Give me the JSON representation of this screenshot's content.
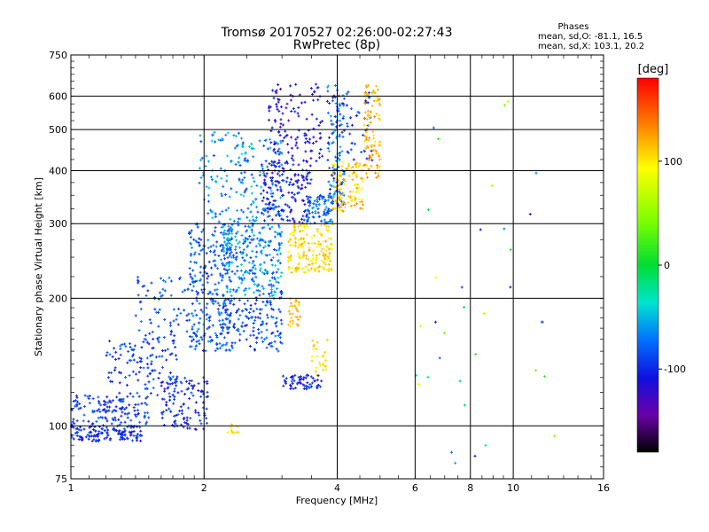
{
  "chart_data": {
    "type": "scatter",
    "title": "Tromsø 20170527 02:26:00-02:27:43",
    "subtitle": "RwPretec (8p)",
    "xlabel": "Frequency [MHz]",
    "ylabel": "Stationary phase Virtual Height [km]",
    "x_scale": "log",
    "y_scale": "log",
    "xlim": [
      1,
      16
    ],
    "ylim": [
      75,
      750
    ],
    "x_ticks": [
      1,
      2,
      4,
      6,
      8,
      10,
      16
    ],
    "x_tick_labels": [
      "1",
      "2",
      "4",
      "6",
      "8",
      "10",
      "16"
    ],
    "y_ticks": [
      75,
      100,
      200,
      300,
      400,
      500,
      600,
      750
    ],
    "y_tick_labels": [
      "75",
      "100",
      "200",
      "300",
      "400",
      "500",
      "600",
      "750"
    ],
    "grid": true,
    "stats": {
      "header": "Phases",
      "line_o": "mean, sd,O: -81.1, 16.5",
      "line_x": "mean, sd,X: 103.1, 20.2"
    },
    "colorbar": {
      "label": "[deg]",
      "range": [
        -180,
        180
      ],
      "ticks": [
        100,
        0,
        -100
      ],
      "tick_labels": [
        "100",
        "0",
        "-100"
      ],
      "colormap": "rainbow"
    },
    "clusters": [
      {
        "f": [
          1.0,
          1.45
        ],
        "h": [
          92,
          100
        ],
        "phase": [
          -130,
          -95
        ],
        "n": 130
      },
      {
        "f": [
          1.0,
          1.5
        ],
        "h": [
          100,
          118
        ],
        "phase": [
          -125,
          -90
        ],
        "n": 130
      },
      {
        "f": [
          1.2,
          1.75
        ],
        "h": [
          118,
          160
        ],
        "phase": [
          -120,
          -90
        ],
        "n": 120
      },
      {
        "f": [
          1.4,
          1.85
        ],
        "h": [
          160,
          225
        ],
        "phase": [
          -115,
          -85
        ],
        "n": 70
      },
      {
        "f": [
          1.6,
          2.05
        ],
        "h": [
          98,
          130
        ],
        "phase": [
          -130,
          -95
        ],
        "n": 110
      },
      {
        "f": [
          1.85,
          2.3
        ],
        "h": [
          150,
          300
        ],
        "phase": [
          -115,
          -80
        ],
        "n": 260
      },
      {
        "f": [
          1.95,
          2.5
        ],
        "h": [
          300,
          500
        ],
        "phase": [
          -105,
          -60
        ],
        "n": 90
      },
      {
        "f": [
          2.2,
          3.0
        ],
        "h": [
          200,
          300
        ],
        "phase": [
          -110,
          -60
        ],
        "n": 280
      },
      {
        "f": [
          2.2,
          3.0
        ],
        "h": [
          150,
          200
        ],
        "phase": [
          -120,
          -85
        ],
        "n": 150
      },
      {
        "f": [
          2.4,
          3.0
        ],
        "h": [
          300,
          480
        ],
        "phase": [
          -110,
          -55
        ],
        "n": 110
      },
      {
        "f": [
          2.7,
          3.5
        ],
        "h": [
          300,
          420
        ],
        "phase": [
          -135,
          -100
        ],
        "n": 160
      },
      {
        "f": [
          2.8,
          3.7
        ],
        "h": [
          420,
          640
        ],
        "phase": [
          -140,
          -110
        ],
        "n": 120
      },
      {
        "f": [
          3.0,
          3.7
        ],
        "h": [
          122,
          132
        ],
        "phase": [
          -130,
          -100
        ],
        "n": 60
      },
      {
        "f": [
          3.4,
          3.9
        ],
        "h": [
          300,
          350
        ],
        "phase": [
          -110,
          -70
        ],
        "n": 80
      },
      {
        "f": [
          3.8,
          4.15
        ],
        "h": [
          330,
          640
        ],
        "phase": [
          -130,
          -60
        ],
        "n": 120
      },
      {
        "f": [
          4.2,
          4.8
        ],
        "h": [
          420,
          620
        ],
        "phase": [
          -130,
          -80
        ],
        "n": 40
      },
      {
        "f": [
          3.1,
          3.9
        ],
        "h": [
          230,
          300
        ],
        "phase": [
          95,
          125
        ],
        "n": 180
      },
      {
        "f": [
          3.9,
          4.6
        ],
        "h": [
          320,
          420
        ],
        "phase": [
          100,
          135
        ],
        "n": 110
      },
      {
        "f": [
          4.6,
          5.0
        ],
        "h": [
          380,
          640
        ],
        "phase": [
          105,
          140
        ],
        "n": 90
      },
      {
        "f": [
          3.1,
          3.3
        ],
        "h": [
          170,
          200
        ],
        "phase": [
          110,
          130
        ],
        "n": 30
      },
      {
        "f": [
          3.5,
          3.8
        ],
        "h": [
          130,
          160
        ],
        "phase": [
          100,
          125
        ],
        "n": 25
      },
      {
        "f": [
          2.25,
          2.45
        ],
        "h": [
          96,
          101
        ],
        "phase": [
          105,
          125
        ],
        "n": 10
      },
      {
        "f": [
          6.0,
          12.5
        ],
        "h": [
          80,
          650
        ],
        "phase": [
          -150,
          120
        ],
        "n": 35
      }
    ]
  }
}
